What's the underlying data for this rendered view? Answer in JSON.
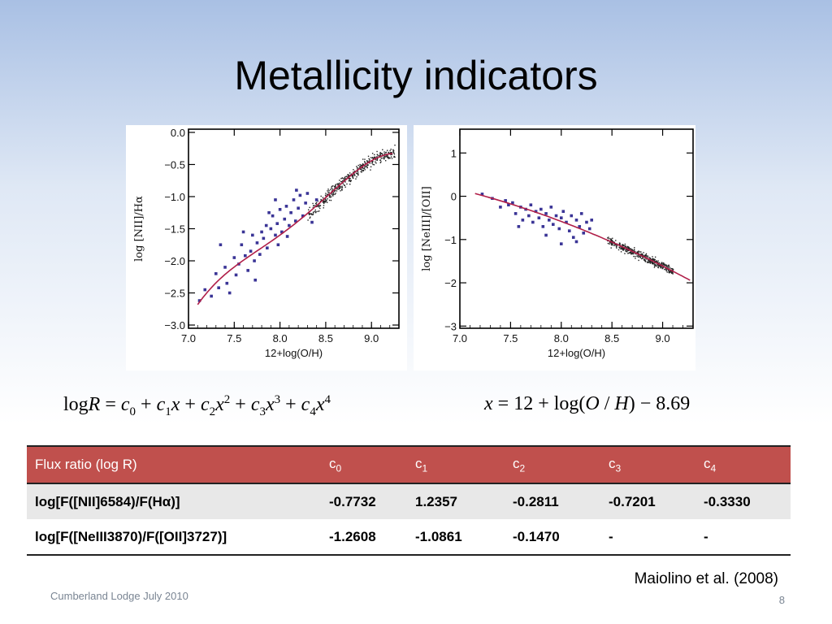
{
  "slide": {
    "title": "Metallicity indicators",
    "footer": "Cumberland Lodge July 2010",
    "page_number": "8",
    "citation": "Maiolino et al. (2008)"
  },
  "formula": {
    "log": "log",
    "R": "R",
    "eq": " = ",
    "plus": " + ",
    "c": "c",
    "x": "x",
    "c0": "0",
    "c1": "1",
    "c2": "2",
    "c3": "3",
    "c4": "4",
    "pow2": "2",
    "pow3": "3",
    "pow4": "4",
    "rhs_x": "x",
    "rhs_mid": " = 12 + log(",
    "O": "O",
    "slash": " / ",
    "H": "H",
    "rhs_end": ") − 8.69"
  },
  "table": {
    "headers": {
      "flux": "Flux ratio (log R)",
      "c": "c",
      "s0": "0",
      "s1": "1",
      "s2": "2",
      "s3": "3",
      "s4": "4"
    },
    "rows": [
      [
        "log[F([NII]6584)/F(Hα)]",
        "-0.7732",
        "1.2357",
        "-0.2811",
        "-0.7201",
        "-0.3330"
      ],
      [
        "log[F([NeIII3870)/F([OII]3727)]",
        "-1.2608",
        "-1.0861",
        "-0.1470",
        "-",
        "-"
      ]
    ]
  },
  "chart_data": [
    {
      "type": "scatter",
      "xlabel": "12+log(O/H)",
      "ylabel": "log [NII]/Hα",
      "xlim": [
        7.0,
        9.3
      ],
      "ylim": [
        -3.05,
        0.05
      ],
      "xticks": [
        "7.0",
        "7.5",
        "8.0",
        "8.5",
        "9.0"
      ],
      "yticks": [
        "0.0",
        "−0.5",
        "−1.0",
        "−1.5",
        "−2.0",
        "−2.5",
        "−3.0"
      ],
      "fit_coefficients": [
        -0.7732,
        1.2357,
        -0.2811,
        -0.7201,
        -0.333
      ],
      "fit_range": [
        7.1,
        9.23
      ],
      "dense_x_range": [
        8.3,
        9.25
      ],
      "sparse_points": [
        [
          7.12,
          -2.62
        ],
        [
          7.18,
          -2.45
        ],
        [
          7.25,
          -2.55
        ],
        [
          7.33,
          -2.42
        ],
        [
          7.3,
          -2.2
        ],
        [
          7.4,
          -2.1
        ],
        [
          7.42,
          -2.35
        ],
        [
          7.5,
          -1.95
        ],
        [
          7.52,
          -2.22
        ],
        [
          7.55,
          -2.05
        ],
        [
          7.58,
          -1.75
        ],
        [
          7.62,
          -1.92
        ],
        [
          7.65,
          -2.15
        ],
        [
          7.68,
          -1.85
        ],
        [
          7.7,
          -1.6
        ],
        [
          7.72,
          -2.0
        ],
        [
          7.75,
          -1.72
        ],
        [
          7.78,
          -1.9
        ],
        [
          7.8,
          -1.55
        ],
        [
          7.82,
          -1.65
        ],
        [
          7.85,
          -1.45
        ],
        [
          7.86,
          -1.8
        ],
        [
          7.9,
          -1.5
        ],
        [
          7.92,
          -1.3
        ],
        [
          7.95,
          -1.6
        ],
        [
          7.97,
          -1.42
        ],
        [
          8.0,
          -1.2
        ],
        [
          8.02,
          -1.55
        ],
        [
          8.05,
          -1.35
        ],
        [
          8.07,
          -1.15
        ],
        [
          8.1,
          -1.45
        ],
        [
          8.12,
          -1.25
        ],
        [
          8.15,
          -1.05
        ],
        [
          8.17,
          -1.38
        ],
        [
          8.2,
          -1.18
        ],
        [
          8.22,
          -0.98
        ],
        [
          8.25,
          -1.3
        ],
        [
          8.28,
          -1.1
        ],
        [
          8.3,
          -0.95
        ],
        [
          7.6,
          -1.55
        ],
        [
          7.88,
          -1.25
        ],
        [
          8.08,
          -1.62
        ],
        [
          7.35,
          -1.75
        ],
        [
          8.35,
          -1.4
        ],
        [
          7.45,
          -2.5
        ],
        [
          7.95,
          -1.05
        ],
        [
          8.18,
          -0.9
        ],
        [
          7.73,
          -2.3
        ],
        [
          8.4,
          -1.05
        ],
        [
          7.98,
          -1.75
        ]
      ]
    },
    {
      "type": "scatter",
      "xlabel": "12+log(O/H)",
      "ylabel": "log [NeIII]/[OII]",
      "xlim": [
        7.0,
        9.3
      ],
      "ylim": [
        -3.05,
        1.55
      ],
      "xticks": [
        "7.0",
        "7.5",
        "8.0",
        "8.5",
        "9.0"
      ],
      "yticks": [
        "1",
        "0",
        "−1",
        "−2",
        "−3"
      ],
      "fit_coefficients": [
        -1.2608,
        -1.0861,
        -0.147
      ],
      "fit_range": [
        7.15,
        9.27
      ],
      "dense_x_range": [
        8.45,
        9.1
      ],
      "sparse_points": [
        [
          7.22,
          0.05
        ],
        [
          7.32,
          -0.05
        ],
        [
          7.45,
          -0.1
        ],
        [
          7.48,
          -0.2
        ],
        [
          7.52,
          -0.15
        ],
        [
          7.55,
          -0.4
        ],
        [
          7.6,
          -0.25
        ],
        [
          7.62,
          -0.55
        ],
        [
          7.65,
          -0.3
        ],
        [
          7.68,
          -0.45
        ],
        [
          7.7,
          -0.2
        ],
        [
          7.72,
          -0.6
        ],
        [
          7.75,
          -0.35
        ],
        [
          7.78,
          -0.5
        ],
        [
          7.8,
          -0.3
        ],
        [
          7.82,
          -0.7
        ],
        [
          7.85,
          -0.4
        ],
        [
          7.88,
          -0.55
        ],
        [
          7.9,
          -0.25
        ],
        [
          7.92,
          -0.65
        ],
        [
          7.95,
          -0.45
        ],
        [
          7.98,
          -0.75
        ],
        [
          8.0,
          -0.5
        ],
        [
          8.02,
          -0.35
        ],
        [
          8.05,
          -0.6
        ],
        [
          8.08,
          -0.8
        ],
        [
          8.1,
          -0.45
        ],
        [
          8.12,
          -0.95
        ],
        [
          8.15,
          -0.55
        ],
        [
          8.18,
          -0.7
        ],
        [
          8.2,
          -0.4
        ],
        [
          8.22,
          -0.85
        ],
        [
          8.25,
          -0.6
        ],
        [
          8.28,
          -0.75
        ],
        [
          7.58,
          -0.7
        ],
        [
          7.85,
          -0.9
        ],
        [
          8.0,
          -1.1
        ],
        [
          8.15,
          -1.05
        ],
        [
          8.3,
          -0.55
        ],
        [
          7.4,
          -0.25
        ]
      ]
    }
  ]
}
